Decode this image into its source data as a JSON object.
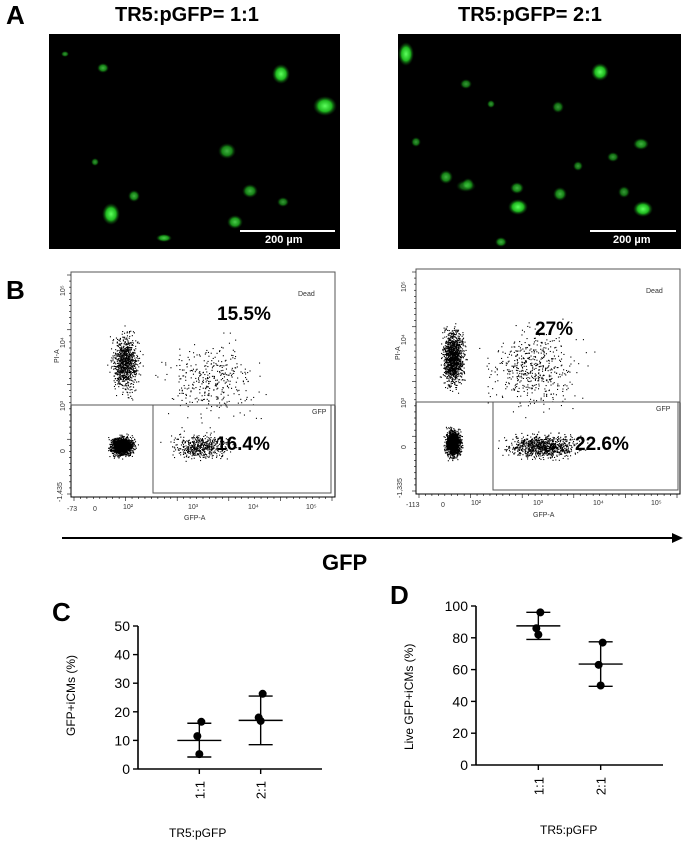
{
  "panel_letters": {
    "a": "A",
    "b": "B",
    "c": "C",
    "d": "D"
  },
  "micrographs": [
    {
      "title": "TR5:pGFP= 1:1",
      "scale_label": "200 µm"
    },
    {
      "title": "TR5:pGFP= 2:1",
      "scale_label": "200 µm"
    }
  ],
  "flow": [
    {
      "y_axis": "PI-A",
      "x_axis": "GFP-A",
      "gate_dead": "Dead",
      "gate_gfp": "GFP",
      "dead_pct": "15.5%",
      "gfp_pct": "16.4%",
      "x_ticks": [
        "-73",
        "0",
        "10²",
        "10³",
        "10⁴",
        "10⁵"
      ],
      "y_ticks": [
        "-1,435",
        "0",
        "10³",
        "10⁴",
        "10⁵"
      ]
    },
    {
      "y_axis": "PI-A",
      "x_axis": "GFP-A",
      "gate_dead": "Dead",
      "gate_gfp": "GFP",
      "dead_pct": "27%",
      "gfp_pct": "22.6%",
      "x_ticks": [
        "-113",
        "0",
        "10²",
        "10³",
        "10⁴",
        "10⁵"
      ],
      "y_ticks": [
        "-1,335",
        "0",
        "10³",
        "10⁴",
        "10⁵"
      ]
    }
  ],
  "gfp_arrow_label": "GFP",
  "chart_data": [
    {
      "type": "scatter",
      "ylabel": "GFP+iCMs (%)",
      "xlabel": "TR5:pGFP",
      "categories": [
        "1:1",
        "2:1"
      ],
      "ylim": [
        0,
        50
      ],
      "yticks": [
        0,
        10,
        20,
        30,
        40,
        50
      ],
      "points": [
        [
          16.5,
          11.5,
          5.2
        ],
        [
          26.3,
          18.0,
          16.8
        ]
      ],
      "mean": [
        10.0,
        17.0
      ],
      "sd_upper": [
        16.0,
        25.5
      ],
      "sd_lower": [
        4.2,
        8.5
      ]
    },
    {
      "type": "scatter",
      "ylabel": "Live GFP+iCMs (%)",
      "xlabel": "TR5:pGFP",
      "categories": [
        "1:1",
        "2:1"
      ],
      "ylim": [
        0,
        100
      ],
      "yticks": [
        0,
        20,
        40,
        60,
        80,
        100
      ],
      "points": [
        [
          96.0,
          86.0,
          82.0
        ],
        [
          77.0,
          63.0,
          50.0
        ]
      ],
      "mean": [
        87.5,
        63.5
      ],
      "sd_upper": [
        96.0,
        77.5
      ],
      "sd_lower": [
        79.0,
        49.5
      ]
    }
  ]
}
